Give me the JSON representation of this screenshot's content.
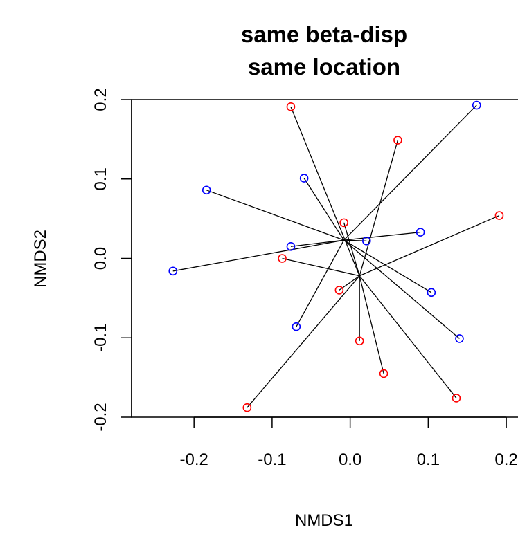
{
  "chart_data": {
    "type": "scatter",
    "title": [
      "same beta-disp",
      "same location"
    ],
    "xlabel": "NMDS1",
    "ylabel": "NMDS2",
    "xlim": [
      -0.28,
      0.215
    ],
    "ylim": [
      -0.2,
      0.2
    ],
    "xticks": [
      -0.2,
      -0.1,
      0.0,
      0.1,
      0.2
    ],
    "xtick_labels": [
      "-0.2",
      "-0.1",
      "0.0",
      "0.1",
      "0.2"
    ],
    "yticks": [
      -0.2,
      -0.1,
      0.0,
      0.1,
      0.2
    ],
    "ytick_labels": [
      "-0.2",
      "-0.1",
      "0.0",
      "0.1",
      "0.2"
    ],
    "grid": false,
    "series": [
      {
        "color": "#0000ff",
        "centroid": [
          -0.008,
          0.023
        ],
        "points": [
          [
            0.162,
            0.193
          ],
          [
            -0.059,
            0.101
          ],
          [
            -0.184,
            0.086
          ],
          [
            0.09,
            0.033
          ],
          [
            0.021,
            0.022
          ],
          [
            -0.076,
            0.015
          ],
          [
            -0.227,
            -0.016
          ],
          [
            0.104,
            -0.043
          ],
          [
            -0.069,
            -0.086
          ],
          [
            0.14,
            -0.101
          ]
        ]
      },
      {
        "color": "#ff0000",
        "centroid": [
          0.012,
          -0.022
        ],
        "points": [
          [
            -0.076,
            0.191
          ],
          [
            0.061,
            0.149
          ],
          [
            0.191,
            0.054
          ],
          [
            -0.008,
            0.045
          ],
          [
            -0.087,
            0.0
          ],
          [
            -0.014,
            -0.04
          ],
          [
            0.012,
            -0.104
          ],
          [
            0.043,
            -0.145
          ],
          [
            0.136,
            -0.176
          ],
          [
            -0.132,
            -0.188
          ]
        ]
      }
    ]
  }
}
